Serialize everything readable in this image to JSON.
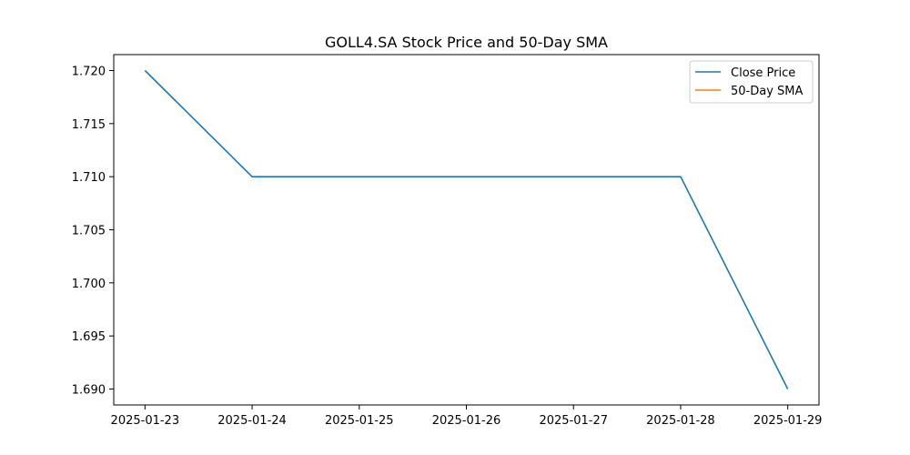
{
  "chart_data": {
    "type": "line",
    "title": "GOLL4.SA Stock Price and 50-Day SMA",
    "xlabel": "",
    "ylabel": "",
    "x": [
      "2025-01-23",
      "2025-01-24",
      "2025-01-25",
      "2025-01-26",
      "2025-01-27",
      "2025-01-28",
      "2025-01-29"
    ],
    "xlim": [
      "2025-01-22T17:00",
      "2025-01-29T07:00"
    ],
    "ylim": [
      1.6885,
      1.7215
    ],
    "yticks": [
      1.69,
      1.695,
      1.7,
      1.705,
      1.71,
      1.715,
      1.72
    ],
    "ytick_labels": [
      "1.690",
      "1.695",
      "1.700",
      "1.705",
      "1.710",
      "1.715",
      "1.720"
    ],
    "xtick_labels": [
      "2025-01-23",
      "2025-01-24",
      "2025-01-25",
      "2025-01-26",
      "2025-01-27",
      "2025-01-28",
      "2025-01-29"
    ],
    "series": [
      {
        "name": "Close Price",
        "color": "#1f77b4",
        "points": [
          {
            "x": "2025-01-23",
            "y": 1.72
          },
          {
            "x": "2025-01-24",
            "y": 1.71
          },
          {
            "x": "2025-01-28",
            "y": 1.71
          },
          {
            "x": "2025-01-29",
            "y": 1.69
          }
        ]
      },
      {
        "name": "50-Day SMA",
        "color": "#ff7f0e",
        "points": []
      }
    ],
    "grid": false,
    "legend_position": "top-right"
  }
}
